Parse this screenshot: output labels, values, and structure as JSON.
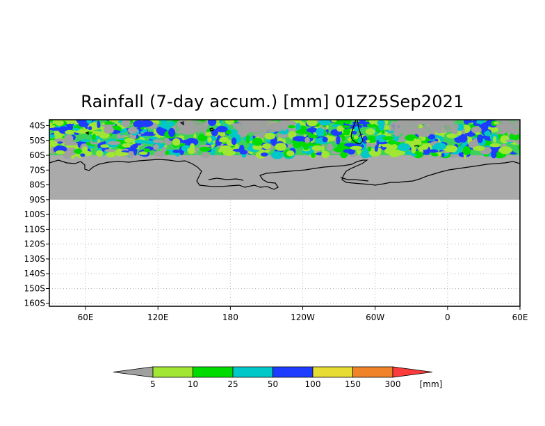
{
  "title": "Rainfall (7-day accum.) [mm] 01Z25Sep2021",
  "y_axis": {
    "ticks": [
      "40S",
      "50S",
      "60S",
      "70S",
      "80S",
      "90S",
      "100S",
      "110S",
      "120S",
      "130S",
      "140S",
      "150S",
      "160S"
    ],
    "values": [
      -40,
      -50,
      -60,
      -70,
      -80,
      -90,
      -100,
      -110,
      -120,
      -130,
      -140,
      -150,
      -160
    ]
  },
  "x_axis": {
    "ticks": [
      "60E",
      "120E",
      "180",
      "120W",
      "60W",
      "0",
      "60E"
    ],
    "values": [
      60,
      120,
      180,
      240,
      300,
      360,
      420
    ],
    "range": [
      30,
      420
    ]
  },
  "lat_range": [
    -36,
    -162
  ],
  "data_extent": {
    "lat_top": -40,
    "lat_bottom": -90,
    "precip_bottom": -60
  },
  "colors": {
    "no_data": "#aaaaaa",
    "precip_background": "#3cd25a"
  },
  "colorbar": {
    "labels": [
      "5",
      "10",
      "25",
      "50",
      "100",
      "150",
      "300"
    ],
    "unit": "[mm]",
    "colors": [
      "#a0a0a0",
      "#a0e632",
      "#00dc00",
      "#00c8c8",
      "#1e3cff",
      "#e6dc32",
      "#f08228",
      "#fa3c3c"
    ]
  }
}
